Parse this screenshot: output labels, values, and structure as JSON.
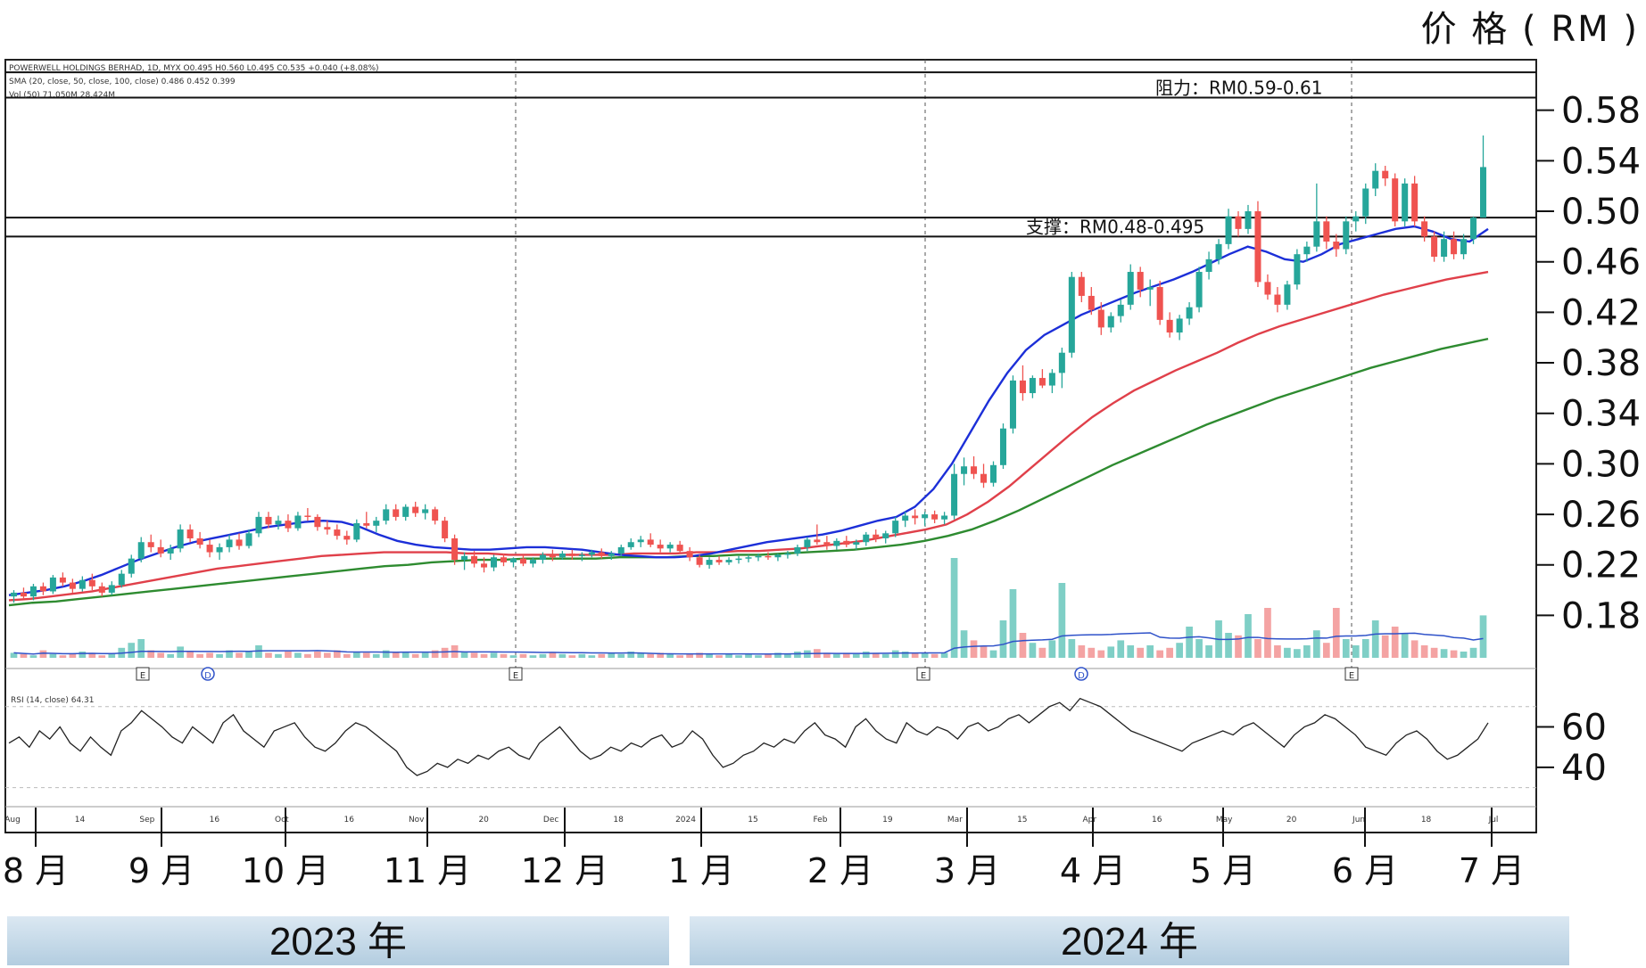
{
  "unit_label": "价 格 ( RM )",
  "info_lines": [
    "POWERWELL HOLDINGS BERHAD, 1D, MYX O0.495 H0.560 L0.495 C0.535 +0.040 (+8.08%)",
    "SMA (20, close, 50, close, 100, close) 0.486 0.452 0.399",
    "Vol (50) 71.050M 28.424M"
  ],
  "colors": {
    "up": "#26a69a",
    "down": "#ef5350",
    "vol_up": "#7fcfc6",
    "vol_down": "#f4a3a3",
    "sma20": "#1c2fd8",
    "sma50": "#e0404a",
    "sma100": "#2e8b30",
    "rsi": "#222222",
    "band": "#b3cde0"
  },
  "chart_data": {
    "type": "candlestick",
    "yticks": [
      "0.58",
      "0.54",
      "0.50",
      "0.46",
      "0.42",
      "0.38",
      "0.34",
      "0.30",
      "0.26",
      "0.22",
      "0.18"
    ],
    "ylim": [
      0.145,
      0.62
    ],
    "rsi_ticks": [
      "60",
      "40"
    ],
    "month_labels": [
      "8 月",
      "9 月",
      "10 月",
      "11 月",
      "12 月",
      "1 月",
      "2 月",
      "3 月",
      "4 月",
      "5 月",
      "6 月",
      "7 月"
    ],
    "years": [
      "2023 年",
      "2024 年"
    ],
    "resistance": {
      "label": "阻力：RM0.59-0.61",
      "low": 0.59,
      "high": 0.61
    },
    "support": {
      "label": "支撑：RM0.48-0.495",
      "low": 0.48,
      "high": 0.495
    },
    "event_markers": [
      "E",
      "D",
      "E",
      "E",
      "D",
      "E"
    ],
    "candles": [
      [
        0.195,
        0.2,
        0.19,
        0.198
      ],
      [
        0.198,
        0.202,
        0.193,
        0.195
      ],
      [
        0.195,
        0.205,
        0.192,
        0.203
      ],
      [
        0.203,
        0.206,
        0.196,
        0.199
      ],
      [
        0.199,
        0.212,
        0.197,
        0.21
      ],
      [
        0.21,
        0.214,
        0.203,
        0.206
      ],
      [
        0.206,
        0.209,
        0.198,
        0.201
      ],
      [
        0.201,
        0.211,
        0.199,
        0.208
      ],
      [
        0.208,
        0.213,
        0.2,
        0.203
      ],
      [
        0.203,
        0.206,
        0.195,
        0.198
      ],
      [
        0.198,
        0.207,
        0.196,
        0.204
      ],
      [
        0.204,
        0.216,
        0.202,
        0.213
      ],
      [
        0.213,
        0.228,
        0.21,
        0.225
      ],
      [
        0.225,
        0.242,
        0.222,
        0.238
      ],
      [
        0.238,
        0.244,
        0.23,
        0.234
      ],
      [
        0.234,
        0.24,
        0.226,
        0.229
      ],
      [
        0.229,
        0.236,
        0.224,
        0.233
      ],
      [
        0.233,
        0.252,
        0.23,
        0.248
      ],
      [
        0.248,
        0.252,
        0.238,
        0.241
      ],
      [
        0.241,
        0.246,
        0.233,
        0.236
      ],
      [
        0.236,
        0.24,
        0.226,
        0.23
      ],
      [
        0.23,
        0.237,
        0.224,
        0.234
      ],
      [
        0.234,
        0.244,
        0.23,
        0.24
      ],
      [
        0.24,
        0.245,
        0.232,
        0.235
      ],
      [
        0.235,
        0.248,
        0.233,
        0.245
      ],
      [
        0.245,
        0.262,
        0.242,
        0.258
      ],
      [
        0.258,
        0.262,
        0.249,
        0.252
      ],
      [
        0.252,
        0.259,
        0.248,
        0.255
      ],
      [
        0.255,
        0.26,
        0.246,
        0.249
      ],
      [
        0.249,
        0.262,
        0.247,
        0.259
      ],
      [
        0.259,
        0.265,
        0.255,
        0.258
      ],
      [
        0.258,
        0.26,
        0.247,
        0.25
      ],
      [
        0.25,
        0.255,
        0.244,
        0.248
      ],
      [
        0.248,
        0.252,
        0.24,
        0.243
      ],
      [
        0.243,
        0.247,
        0.236,
        0.24
      ],
      [
        0.24,
        0.256,
        0.238,
        0.253
      ],
      [
        0.253,
        0.262,
        0.249,
        0.251
      ],
      [
        0.251,
        0.258,
        0.246,
        0.255
      ],
      [
        0.255,
        0.268,
        0.252,
        0.264
      ],
      [
        0.264,
        0.268,
        0.255,
        0.258
      ],
      [
        0.258,
        0.268,
        0.255,
        0.266
      ],
      [
        0.266,
        0.27,
        0.258,
        0.261
      ],
      [
        0.261,
        0.268,
        0.256,
        0.264
      ],
      [
        0.264,
        0.266,
        0.252,
        0.255
      ],
      [
        0.255,
        0.258,
        0.238,
        0.241
      ],
      [
        0.241,
        0.244,
        0.22,
        0.224
      ],
      [
        0.224,
        0.23,
        0.216,
        0.227
      ],
      [
        0.227,
        0.231,
        0.218,
        0.221
      ],
      [
        0.221,
        0.226,
        0.214,
        0.218
      ],
      [
        0.218,
        0.228,
        0.215,
        0.226
      ],
      [
        0.226,
        0.229,
        0.219,
        0.222
      ],
      [
        0.222,
        0.226,
        0.218,
        0.225
      ],
      [
        0.225,
        0.228,
        0.219,
        0.221
      ],
      [
        0.221,
        0.226,
        0.218,
        0.224
      ],
      [
        0.224,
        0.23,
        0.221,
        0.228
      ],
      [
        0.228,
        0.232,
        0.223,
        0.226
      ],
      [
        0.226,
        0.231,
        0.224,
        0.229
      ],
      [
        0.229,
        0.232,
        0.224,
        0.227
      ],
      [
        0.227,
        0.23,
        0.223,
        0.228
      ],
      [
        0.228,
        0.232,
        0.226,
        0.23
      ],
      [
        0.23,
        0.233,
        0.225,
        0.227
      ],
      [
        0.227,
        0.231,
        0.224,
        0.229
      ],
      [
        0.229,
        0.236,
        0.227,
        0.234
      ],
      [
        0.234,
        0.241,
        0.232,
        0.238
      ],
      [
        0.238,
        0.243,
        0.234,
        0.24
      ],
      [
        0.24,
        0.245,
        0.234,
        0.236
      ],
      [
        0.236,
        0.24,
        0.23,
        0.233
      ],
      [
        0.233,
        0.238,
        0.23,
        0.236
      ],
      [
        0.236,
        0.239,
        0.229,
        0.231
      ],
      [
        0.231,
        0.234,
        0.223,
        0.226
      ],
      [
        0.226,
        0.228,
        0.218,
        0.22
      ],
      [
        0.22,
        0.226,
        0.217,
        0.224
      ],
      [
        0.224,
        0.227,
        0.22,
        0.222
      ],
      [
        0.222,
        0.226,
        0.22,
        0.224
      ],
      [
        0.224,
        0.227,
        0.221,
        0.225
      ],
      [
        0.225,
        0.228,
        0.222,
        0.226
      ],
      [
        0.226,
        0.229,
        0.223,
        0.227
      ],
      [
        0.227,
        0.23,
        0.224,
        0.226
      ],
      [
        0.226,
        0.229,
        0.223,
        0.228
      ],
      [
        0.228,
        0.231,
        0.225,
        0.229
      ],
      [
        0.229,
        0.236,
        0.227,
        0.234
      ],
      [
        0.234,
        0.242,
        0.231,
        0.24
      ],
      [
        0.24,
        0.252,
        0.236,
        0.238
      ],
      [
        0.238,
        0.243,
        0.232,
        0.235
      ],
      [
        0.235,
        0.241,
        0.232,
        0.239
      ],
      [
        0.239,
        0.243,
        0.234,
        0.236
      ],
      [
        0.236,
        0.24,
        0.232,
        0.238
      ],
      [
        0.238,
        0.246,
        0.235,
        0.244
      ],
      [
        0.244,
        0.248,
        0.238,
        0.241
      ],
      [
        0.241,
        0.247,
        0.237,
        0.245
      ],
      [
        0.245,
        0.258,
        0.242,
        0.255
      ],
      [
        0.255,
        0.262,
        0.25,
        0.259
      ],
      [
        0.259,
        0.264,
        0.252,
        0.257
      ],
      [
        0.257,
        0.262,
        0.251,
        0.26
      ],
      [
        0.26,
        0.263,
        0.253,
        0.256
      ],
      [
        0.256,
        0.262,
        0.252,
        0.259
      ],
      [
        0.259,
        0.3,
        0.256,
        0.292
      ],
      [
        0.292,
        0.305,
        0.283,
        0.298
      ],
      [
        0.298,
        0.306,
        0.288,
        0.292
      ],
      [
        0.292,
        0.3,
        0.281,
        0.285
      ],
      [
        0.285,
        0.302,
        0.282,
        0.299
      ],
      [
        0.299,
        0.332,
        0.296,
        0.328
      ],
      [
        0.328,
        0.37,
        0.324,
        0.366
      ],
      [
        0.366,
        0.378,
        0.35,
        0.356
      ],
      [
        0.356,
        0.37,
        0.352,
        0.368
      ],
      [
        0.368,
        0.375,
        0.36,
        0.362
      ],
      [
        0.362,
        0.375,
        0.356,
        0.372
      ],
      [
        0.372,
        0.392,
        0.36,
        0.388
      ],
      [
        0.388,
        0.452,
        0.384,
        0.448
      ],
      [
        0.448,
        0.452,
        0.428,
        0.433
      ],
      [
        0.433,
        0.44,
        0.418,
        0.422
      ],
      [
        0.422,
        0.428,
        0.402,
        0.408
      ],
      [
        0.408,
        0.42,
        0.404,
        0.417
      ],
      [
        0.417,
        0.43,
        0.412,
        0.426
      ],
      [
        0.426,
        0.458,
        0.422,
        0.452
      ],
      [
        0.452,
        0.456,
        0.432,
        0.438
      ],
      [
        0.438,
        0.446,
        0.425,
        0.44
      ],
      [
        0.44,
        0.445,
        0.41,
        0.414
      ],
      [
        0.414,
        0.42,
        0.4,
        0.404
      ],
      [
        0.404,
        0.418,
        0.398,
        0.415
      ],
      [
        0.415,
        0.428,
        0.41,
        0.424
      ],
      [
        0.424,
        0.456,
        0.42,
        0.452
      ],
      [
        0.452,
        0.468,
        0.446,
        0.462
      ],
      [
        0.462,
        0.478,
        0.458,
        0.474
      ],
      [
        0.474,
        0.502,
        0.47,
        0.496
      ],
      [
        0.496,
        0.5,
        0.48,
        0.486
      ],
      [
        0.486,
        0.505,
        0.482,
        0.5
      ],
      [
        0.5,
        0.508,
        0.44,
        0.444
      ],
      [
        0.444,
        0.45,
        0.43,
        0.434
      ],
      [
        0.434,
        0.44,
        0.42,
        0.426
      ],
      [
        0.426,
        0.445,
        0.422,
        0.442
      ],
      [
        0.442,
        0.47,
        0.438,
        0.466
      ],
      [
        0.466,
        0.476,
        0.46,
        0.472
      ],
      [
        0.472,
        0.522,
        0.468,
        0.492
      ],
      [
        0.492,
        0.496,
        0.47,
        0.476
      ],
      [
        0.476,
        0.482,
        0.464,
        0.47
      ],
      [
        0.47,
        0.496,
        0.466,
        0.492
      ],
      [
        0.492,
        0.5,
        0.484,
        0.496
      ],
      [
        0.496,
        0.522,
        0.49,
        0.518
      ],
      [
        0.518,
        0.538,
        0.512,
        0.532
      ],
      [
        0.532,
        0.536,
        0.52,
        0.526
      ],
      [
        0.526,
        0.53,
        0.488,
        0.492
      ],
      [
        0.492,
        0.526,
        0.488,
        0.522
      ],
      [
        0.522,
        0.528,
        0.488,
        0.492
      ],
      [
        0.492,
        0.496,
        0.476,
        0.48
      ],
      [
        0.48,
        0.484,
        0.46,
        0.464
      ],
      [
        0.464,
        0.484,
        0.46,
        0.478
      ],
      [
        0.478,
        0.484,
        0.462,
        0.466
      ],
      [
        0.466,
        0.482,
        0.462,
        0.478
      ],
      [
        0.478,
        0.496,
        0.474,
        0.495
      ],
      [
        0.495,
        0.56,
        0.495,
        0.535
      ]
    ],
    "sma20": [
      0.196,
      0.198,
      0.2,
      0.203,
      0.207,
      0.212,
      0.218,
      0.224,
      0.229,
      0.234,
      0.238,
      0.241,
      0.244,
      0.247,
      0.25,
      0.252,
      0.254,
      0.255,
      0.254,
      0.25,
      0.244,
      0.239,
      0.236,
      0.234,
      0.233,
      0.232,
      0.232,
      0.233,
      0.234,
      0.234,
      0.233,
      0.232,
      0.23,
      0.228,
      0.227,
      0.226,
      0.226,
      0.227,
      0.229,
      0.232,
      0.235,
      0.238,
      0.24,
      0.242,
      0.244,
      0.247,
      0.251,
      0.255,
      0.258,
      0.266,
      0.28,
      0.3,
      0.325,
      0.35,
      0.372,
      0.39,
      0.402,
      0.41,
      0.418,
      0.424,
      0.43,
      0.436,
      0.441,
      0.446,
      0.452,
      0.459,
      0.466,
      0.472,
      0.468,
      0.462,
      0.46,
      0.466,
      0.474,
      0.478,
      0.482,
      0.486,
      0.488,
      0.484,
      0.478,
      0.476,
      0.486
    ],
    "sma50": [
      0.192,
      0.193,
      0.195,
      0.197,
      0.199,
      0.202,
      0.205,
      0.208,
      0.211,
      0.214,
      0.217,
      0.219,
      0.221,
      0.223,
      0.225,
      0.227,
      0.228,
      0.229,
      0.23,
      0.23,
      0.23,
      0.23,
      0.229,
      0.229,
      0.228,
      0.228,
      0.228,
      0.228,
      0.228,
      0.228,
      0.229,
      0.229,
      0.229,
      0.23,
      0.23,
      0.231,
      0.231,
      0.232,
      0.233,
      0.235,
      0.237,
      0.239,
      0.242,
      0.245,
      0.248,
      0.252,
      0.26,
      0.27,
      0.282,
      0.296,
      0.31,
      0.324,
      0.337,
      0.348,
      0.358,
      0.366,
      0.374,
      0.381,
      0.388,
      0.396,
      0.403,
      0.409,
      0.414,
      0.419,
      0.424,
      0.429,
      0.434,
      0.438,
      0.442,
      0.446,
      0.449,
      0.452
    ],
    "sma100": [
      0.188,
      0.19,
      0.191,
      0.193,
      0.195,
      0.197,
      0.199,
      0.201,
      0.203,
      0.205,
      0.207,
      0.209,
      0.211,
      0.213,
      0.215,
      0.217,
      0.219,
      0.22,
      0.222,
      0.223,
      0.224,
      0.224,
      0.225,
      0.225,
      0.225,
      0.225,
      0.226,
      0.226,
      0.226,
      0.227,
      0.227,
      0.228,
      0.228,
      0.229,
      0.23,
      0.231,
      0.232,
      0.234,
      0.236,
      0.239,
      0.243,
      0.248,
      0.255,
      0.263,
      0.272,
      0.281,
      0.29,
      0.299,
      0.307,
      0.315,
      0.323,
      0.331,
      0.338,
      0.345,
      0.352,
      0.358,
      0.364,
      0.37,
      0.376,
      0.381,
      0.386,
      0.391,
      0.395,
      0.399
    ],
    "volume": [
      4,
      3,
      2,
      6,
      3,
      2,
      3,
      5,
      4,
      2,
      3,
      8,
      12,
      15,
      6,
      4,
      3,
      9,
      5,
      3,
      4,
      3,
      6,
      4,
      5,
      10,
      4,
      3,
      5,
      4,
      3,
      5,
      4,
      6,
      3,
      5,
      4,
      3,
      6,
      4,
      5,
      3,
      4,
      6,
      8,
      10,
      5,
      4,
      3,
      4,
      3,
      2,
      3,
      2,
      3,
      4,
      3,
      2,
      3,
      2,
      3,
      4,
      3,
      5,
      4,
      3,
      4,
      3,
      2,
      3,
      4,
      3,
      2,
      3,
      2,
      3,
      2,
      3,
      4,
      3,
      5,
      6,
      7,
      4,
      3,
      4,
      3,
      5,
      4,
      3,
      6,
      5,
      4,
      4,
      3,
      4,
      80,
      22,
      14,
      9,
      6,
      30,
      55,
      20,
      12,
      8,
      14,
      60,
      15,
      10,
      8,
      6,
      9,
      14,
      10,
      8,
      10,
      6,
      8,
      12,
      25,
      15,
      10,
      30,
      20,
      18,
      35,
      15,
      40,
      10,
      8,
      7,
      10,
      22,
      12,
      40,
      15,
      10,
      15,
      30,
      18,
      25,
      20,
      14,
      10,
      8,
      7,
      6,
      5,
      8,
      34
    ]
  },
  "rsi": [
    52,
    55,
    50,
    58,
    54,
    60,
    52,
    48,
    55,
    50,
    46,
    58,
    62,
    68,
    64,
    60,
    55,
    52,
    60,
    56,
    52,
    62,
    66,
    58,
    54,
    50,
    58,
    60,
    62,
    55,
    50,
    48,
    52,
    58,
    62,
    60,
    56,
    52,
    48,
    40,
    36,
    38,
    42,
    40,
    44,
    42,
    46,
    44,
    48,
    50,
    46,
    44,
    52,
    56,
    60,
    54,
    48,
    44,
    46,
    50,
    48,
    52,
    50,
    54,
    56,
    50,
    52,
    58,
    54,
    46,
    40,
    42,
    46,
    48,
    52,
    50,
    54,
    52,
    58,
    62,
    56,
    54,
    50,
    60,
    64,
    58,
    54,
    52,
    62,
    58,
    56,
    60,
    58,
    54,
    60,
    62,
    58,
    60,
    64,
    66,
    62,
    66,
    70,
    72,
    68,
    74,
    72,
    70,
    66,
    62,
    58,
    56,
    54,
    52,
    50,
    48,
    52,
    54,
    56,
    58,
    56,
    60,
    62,
    58,
    54,
    50,
    56,
    60,
    62,
    66,
    64,
    60,
    56,
    50,
    48,
    46,
    52,
    56,
    58,
    54,
    48,
    44,
    46,
    50,
    54,
    62
  ],
  "axis_small_labels": [
    "Aug",
    "14",
    "Sep",
    "16",
    "Oct",
    "16",
    "Nov",
    "20",
    "Dec",
    "18",
    "2024",
    "15",
    "Feb",
    "19",
    "Mar",
    "15",
    "Apr",
    "16",
    "May",
    "20",
    "Jun",
    "18",
    "Jul"
  ]
}
